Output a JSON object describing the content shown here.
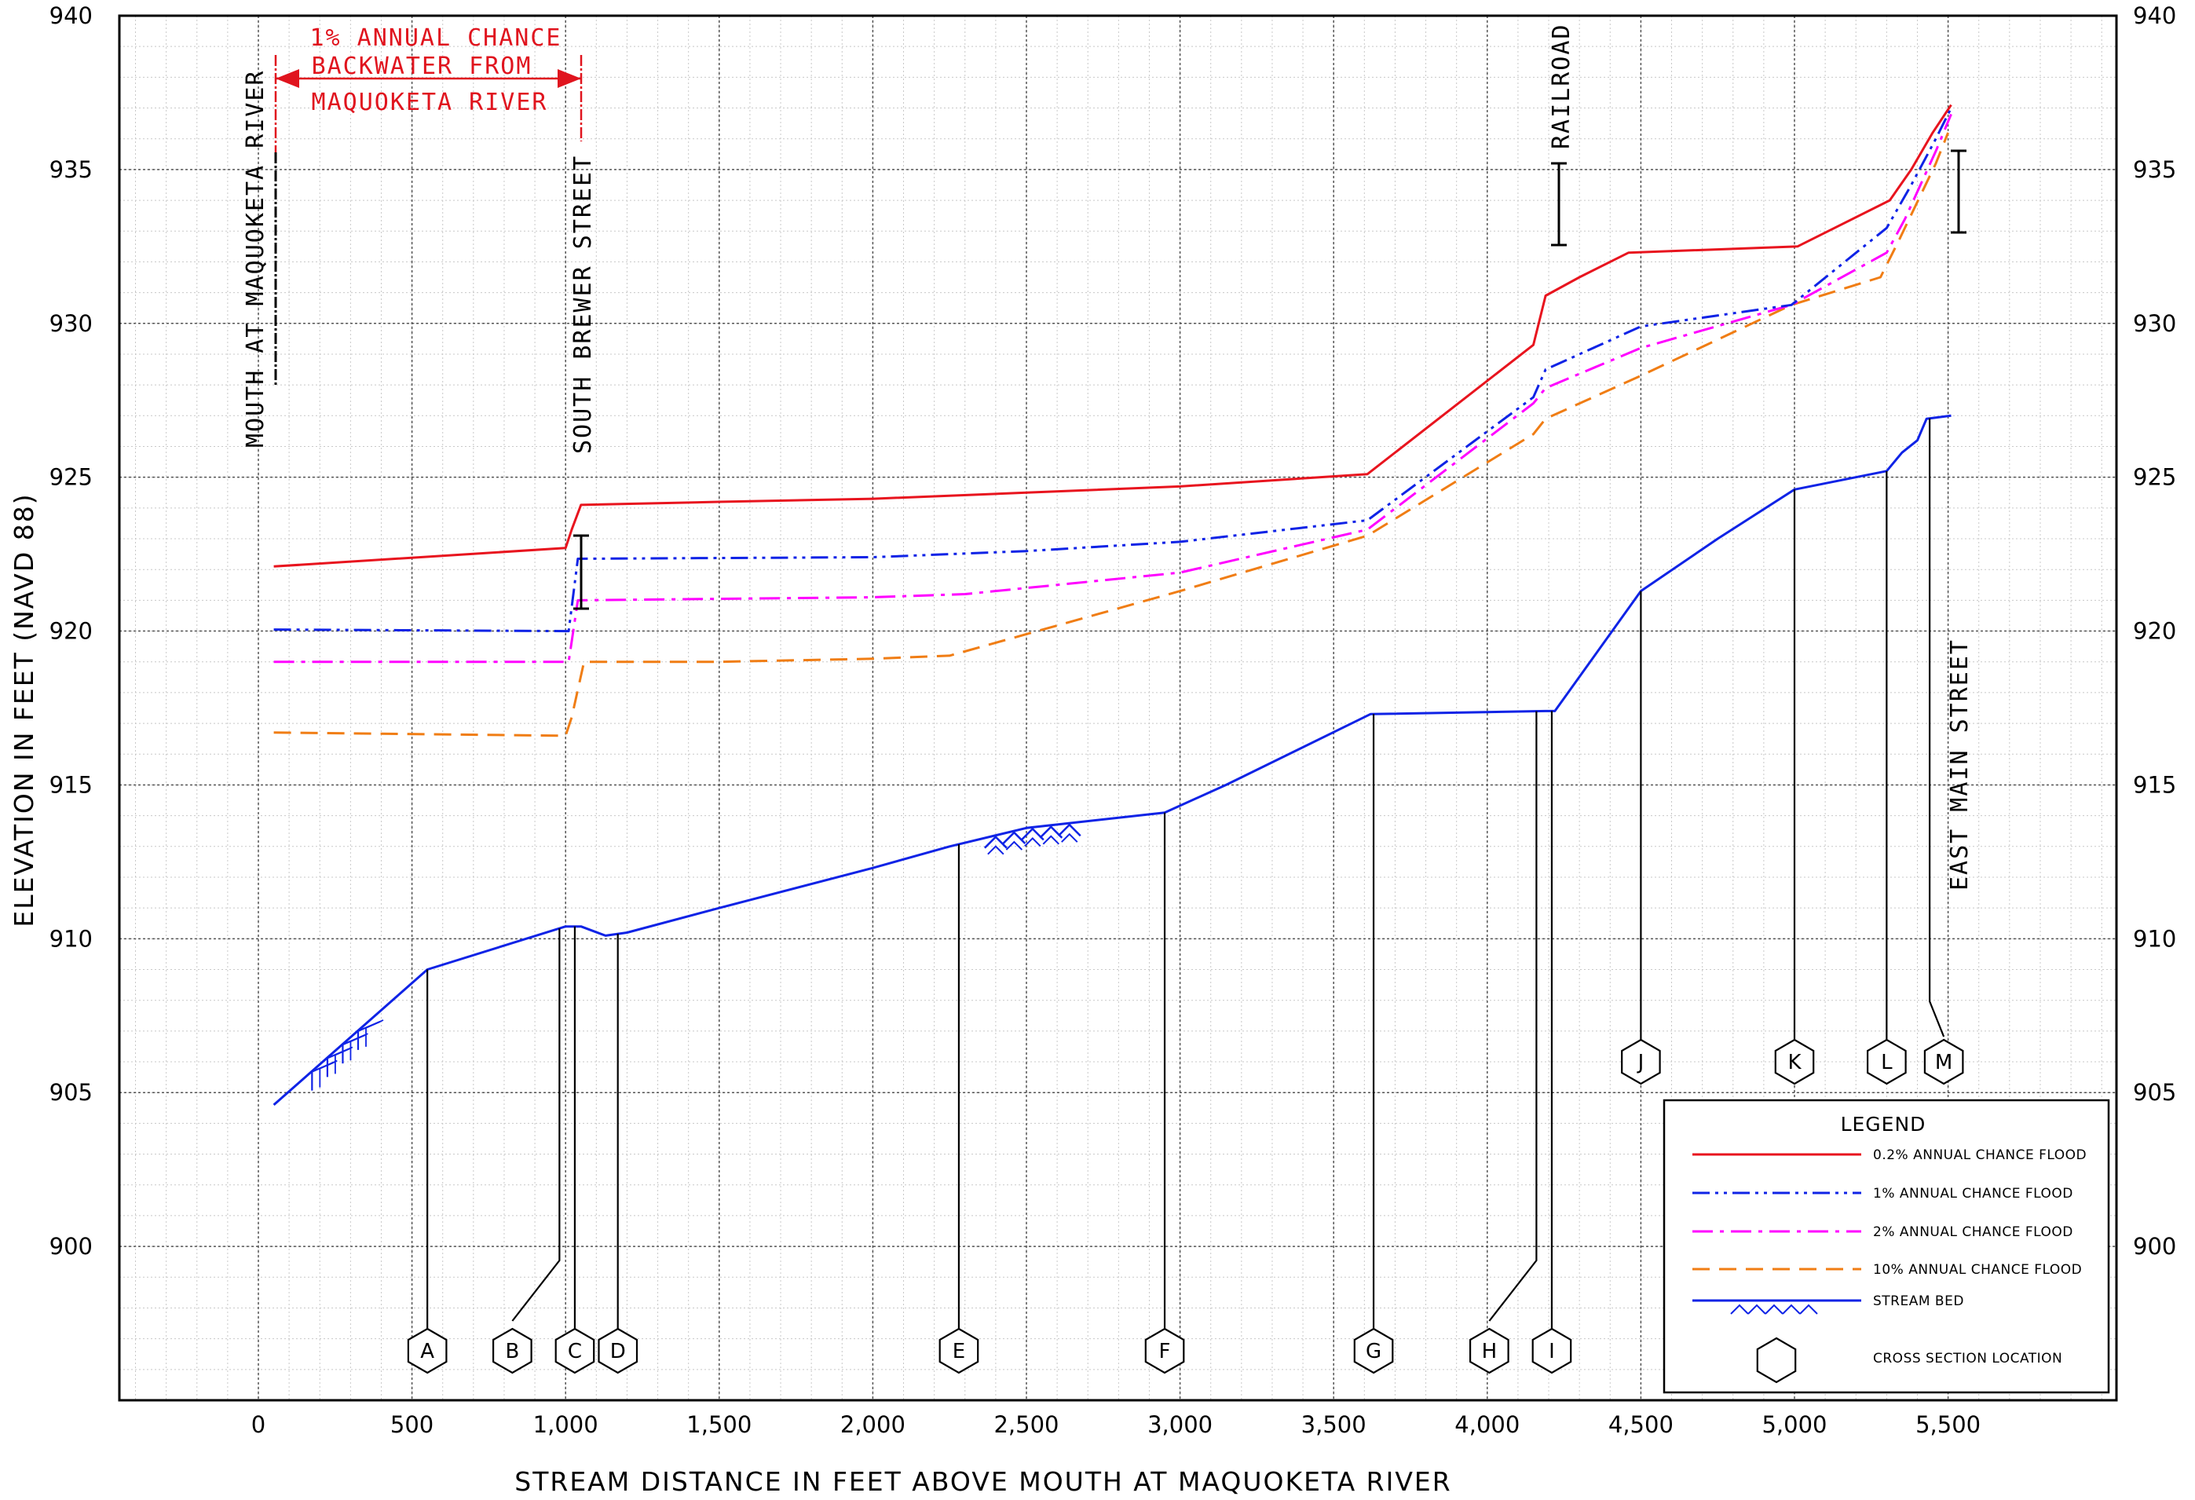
{
  "chart_data": {
    "type": "line",
    "xlabel": "STREAM DISTANCE IN FEET ABOVE MOUTH AT MAQUOKETA RIVER",
    "ylabel": "ELEVATION IN FEET (NAVD 88)",
    "xlim": [
      -500,
      6000
    ],
    "ylim": [
      895,
      940
    ],
    "x_ticks": [
      0,
      500,
      1000,
      1500,
      2000,
      2500,
      3000,
      3500,
      4000,
      4500,
      5000,
      5500
    ],
    "x_tick_labels": [
      "0",
      "500",
      "1,000",
      "1,500",
      "2,000",
      "2,500",
      "3,000",
      "3,500",
      "4,000",
      "4,500",
      "5,000",
      "5,500"
    ],
    "y_ticks": [
      900,
      905,
      910,
      915,
      920,
      925,
      930,
      935,
      940
    ],
    "y_tick_labels": [
      "900",
      "905",
      "910",
      "915",
      "920",
      "925",
      "930",
      "935",
      "940"
    ],
    "grid": true,
    "series": [
      {
        "name": "0.2% ANNUAL CHANCE FLOOD",
        "color": "#e8141e",
        "dash": "solid",
        "x": [
          50,
          1000,
          1020,
          1050,
          1500,
          2000,
          2500,
          3000,
          3610,
          4150,
          4190,
          4300,
          4460,
          5010,
          5310,
          5380,
          5450,
          5510
        ],
        "y": [
          922.1,
          922.7,
          923.3,
          924.1,
          924.2,
          924.3,
          924.5,
          924.7,
          925.1,
          929.3,
          930.9,
          931.5,
          932.3,
          932.5,
          934.0,
          935.0,
          936.2,
          937.1
        ]
      },
      {
        "name": "1% ANNUAL CHANCE FLOOD",
        "color": "#0f23e6",
        "dash": "dash-dot-dot",
        "x": [
          50,
          1010,
          1040,
          2000,
          2500,
          3000,
          3610,
          4150,
          4190,
          4500,
          4990,
          5300,
          5380,
          5460,
          5510
        ],
        "y": [
          920.05,
          920.0,
          922.35,
          922.4,
          922.6,
          922.9,
          923.6,
          927.6,
          928.5,
          929.9,
          930.6,
          933.1,
          934.5,
          936.0,
          937.0
        ]
      },
      {
        "name": "2% ANNUAL CHANCE FLOOD",
        "color": "#ff00ff",
        "dash": "dash-dot",
        "x": [
          50,
          1010,
          1040,
          2000,
          2300,
          3000,
          3610,
          4150,
          4190,
          4500,
          4990,
          5300,
          5360,
          5460,
          5510
        ],
        "y": [
          919.0,
          919.0,
          921.0,
          921.1,
          921.2,
          921.9,
          923.3,
          927.4,
          927.9,
          929.2,
          930.6,
          932.3,
          933.4,
          935.6,
          936.8
        ]
      },
      {
        "name": "10% ANNUAL CHANCE FLOOD",
        "color": "#f07d14",
        "dash": "dashed",
        "x": [
          50,
          1000,
          1020,
          1060,
          1500,
          2000,
          2250,
          3000,
          3610,
          4150,
          4190,
          4500,
          4990,
          5280,
          5340,
          5460,
          5500
        ],
        "y": [
          916.7,
          916.6,
          917.2,
          919.0,
          919.0,
          919.1,
          919.2,
          921.3,
          923.1,
          926.4,
          926.9,
          928.3,
          930.6,
          931.5,
          932.7,
          935.2,
          936.2
        ]
      },
      {
        "name": "STREAM BED",
        "color": "#0f23e6",
        "dash": "solid",
        "x": [
          50,
          550,
          1000,
          1050,
          1130,
          1200,
          1500,
          2000,
          2250,
          2500,
          2950,
          3150,
          3620,
          4190,
          4220,
          4500,
          4750,
          5000,
          5300,
          5350,
          5400,
          5430,
          5510
        ],
        "y": [
          904.6,
          909.0,
          910.4,
          910.4,
          910.1,
          910.2,
          911.0,
          912.3,
          913.0,
          913.6,
          914.1,
          915.0,
          917.3,
          917.4,
          917.4,
          921.3,
          923.0,
          924.6,
          925.2,
          925.8,
          926.2,
          926.9,
          927.0
        ]
      }
    ],
    "cross_sections": [
      {
        "label": "A",
        "x": 550
      },
      {
        "label": "B",
        "x": 980
      },
      {
        "label": "C",
        "x": 1030
      },
      {
        "label": "D",
        "x": 1170
      },
      {
        "label": "E",
        "x": 2280
      },
      {
        "label": "F",
        "x": 2950
      },
      {
        "label": "G",
        "x": 3630
      },
      {
        "label": "H",
        "x": 4160
      },
      {
        "label": "I",
        "x": 4210
      },
      {
        "label": "J",
        "x": 4500
      },
      {
        "label": "K",
        "x": 5000
      },
      {
        "label": "L",
        "x": 5300
      },
      {
        "label": "M",
        "x": 5440
      }
    ],
    "annotations": {
      "mouth": "MOUTH AT MAQUOKETA RIVER",
      "south_brewer": "SOUTH BREWER STREET",
      "railroad": "RAILROAD",
      "east_main": "EAST MAIN STREET",
      "backwater_lines": [
        "1% ANNUAL CHANCE",
        "BACKWATER FROM",
        "MAQUOKETA RIVER"
      ]
    },
    "legend": {
      "title": "LEGEND",
      "position": "bottom-right",
      "entries": [
        {
          "label": "0.2% ANNUAL CHANCE FLOOD"
        },
        {
          "label": "1% ANNUAL CHANCE FLOOD"
        },
        {
          "label": "2% ANNUAL CHANCE FLOOD"
        },
        {
          "label": "10% ANNUAL CHANCE FLOOD"
        },
        {
          "label": "STREAM BED"
        },
        {
          "label": "CROSS SECTION LOCATION"
        }
      ]
    }
  }
}
